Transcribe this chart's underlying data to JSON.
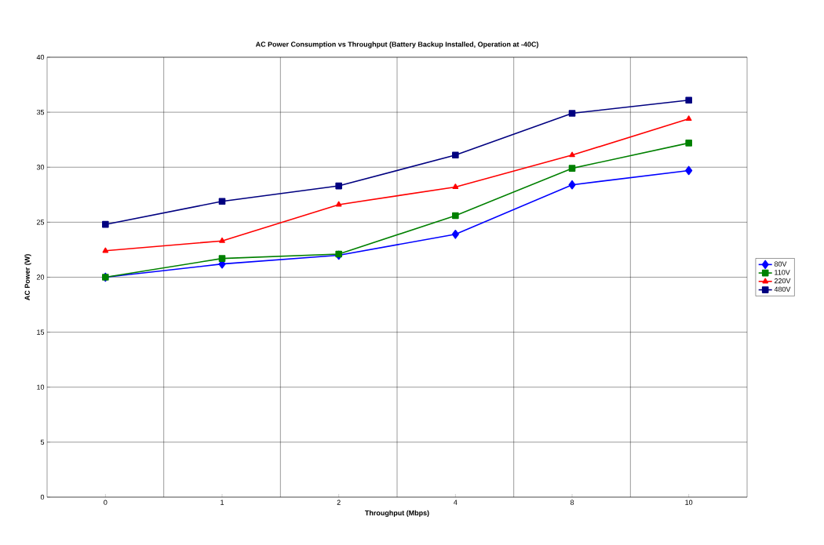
{
  "chart_data": {
    "type": "line",
    "title": "AC Power Consumption vs Throughput (Battery Backup Installed, Operation at -40C)",
    "xlabel": "Throughput (Mbps)",
    "ylabel": "AC Power (W)",
    "categories": [
      "0",
      "1",
      "2",
      "4",
      "8",
      "10"
    ],
    "ylim": [
      0,
      40
    ],
    "yticks": [
      0,
      5,
      10,
      15,
      20,
      25,
      30,
      35,
      40
    ],
    "grid": true,
    "legend": "right",
    "line_style": "solid",
    "series": [
      {
        "name": "80V",
        "color": "#0000ff",
        "marker": "diamond",
        "values": [
          20.0,
          21.2,
          22.0,
          23.9,
          28.4,
          29.7
        ]
      },
      {
        "name": "110V",
        "color": "#008000",
        "marker": "square",
        "values": [
          20.0,
          21.7,
          22.1,
          25.6,
          29.9,
          32.2
        ]
      },
      {
        "name": "220V",
        "color": "#ff0000",
        "marker": "triangle",
        "values": [
          22.4,
          23.3,
          26.6,
          28.2,
          31.1,
          34.4
        ]
      },
      {
        "name": "480V",
        "color": "#000080",
        "marker": "square",
        "values": [
          24.8,
          26.9,
          28.3,
          31.1,
          34.9,
          36.1
        ]
      }
    ]
  }
}
